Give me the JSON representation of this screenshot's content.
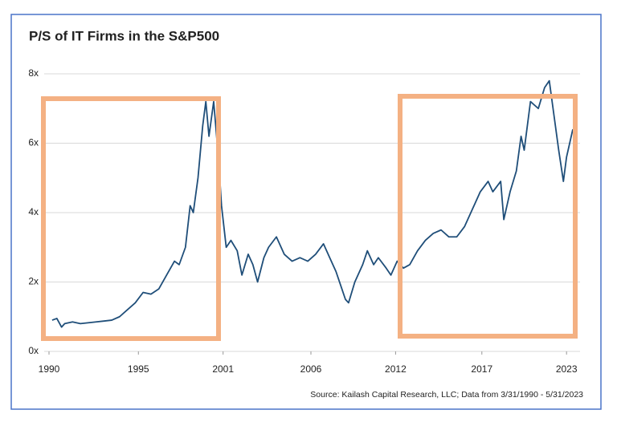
{
  "chart_data": {
    "type": "line",
    "title": "P/S of IT Firms in the S&P500",
    "source": "Source: Kailash Capital Research, LLC; Data from 3/31/1990 - 5/31/2023",
    "x": [
      1990.2,
      1990.5,
      1990.8,
      1991,
      1991.5,
      1992,
      1993,
      1994,
      1994.5,
      1995,
      1995.5,
      1996,
      1996.5,
      1997,
      1997.5,
      1998,
      1998.3,
      1998.7,
      1999,
      1999.2,
      1999.5,
      1999.8,
      2000,
      2000.2,
      2000.5,
      2000.8,
      2001,
      2001.3,
      2001.6,
      2002,
      2002.3,
      2002.7,
      2003,
      2003.3,
      2003.7,
      2004,
      2004.5,
      2005,
      2005.5,
      2006,
      2006.5,
      2007,
      2007.5,
      2007.9,
      2008.3,
      2008.6,
      2008.9,
      2009.1,
      2009.5,
      2010,
      2010.3,
      2010.7,
      2011,
      2011.5,
      2011.8,
      2012.2,
      2012.6,
      2013,
      2013.5,
      2014,
      2014.5,
      2015,
      2015.5,
      2016,
      2016.5,
      2017,
      2017.5,
      2018,
      2018.3,
      2018.8,
      2019,
      2019.4,
      2019.8,
      2020.1,
      2020.3,
      2020.7,
      2021.2,
      2021.6,
      2021.9,
      2022.2,
      2022.5,
      2022.8,
      2023,
      2023.2,
      2023.4
    ],
    "series": [
      {
        "color": "#1f4e79",
        "values": [
          0.9,
          0.95,
          0.7,
          0.8,
          0.85,
          0.8,
          0.85,
          0.9,
          1.0,
          1.2,
          1.4,
          1.7,
          1.65,
          1.8,
          2.2,
          2.6,
          2.5,
          3.0,
          4.2,
          4.0,
          5.0,
          6.5,
          7.2,
          6.2,
          7.2,
          5.6,
          4.2,
          3.0,
          3.2,
          2.9,
          2.2,
          2.8,
          2.5,
          2.0,
          2.7,
          3.0,
          3.3,
          2.8,
          2.6,
          2.7,
          2.6,
          2.8,
          3.1,
          2.7,
          2.3,
          1.9,
          1.5,
          1.4,
          2.0,
          2.5,
          2.9,
          2.5,
          2.7,
          2.4,
          2.2,
          2.6,
          2.4,
          2.5,
          2.9,
          3.2,
          3.4,
          3.5,
          3.3,
          3.3,
          3.6,
          4.1,
          4.6,
          4.9,
          4.6,
          4.9,
          3.8,
          4.6,
          5.2,
          6.2,
          5.8,
          7.2,
          7.0,
          7.6,
          7.8,
          6.8,
          5.8,
          4.9,
          5.6,
          6.0,
          6.4
        ]
      }
    ],
    "xlim": [
      1990,
      2023.4
    ],
    "xticks": [
      {
        "value": 1990,
        "label": "1990"
      },
      {
        "value": 1995.7,
        "label": "1995"
      },
      {
        "value": 2001.1,
        "label": "2001"
      },
      {
        "value": 2006.7,
        "label": "2006"
      },
      {
        "value": 2012.1,
        "label": "2012"
      },
      {
        "value": 2017.6,
        "label": "2017"
      },
      {
        "value": 2023,
        "label": "2023"
      }
    ],
    "ylim": [
      0,
      8
    ],
    "yticks": [
      {
        "value": 0,
        "label": "0x"
      },
      {
        "value": 2,
        "label": "2x"
      },
      {
        "value": 4,
        "label": "4x"
      },
      {
        "value": 6,
        "label": "6x"
      },
      {
        "value": 8,
        "label": "8x"
      }
    ],
    "grid": true
  }
}
